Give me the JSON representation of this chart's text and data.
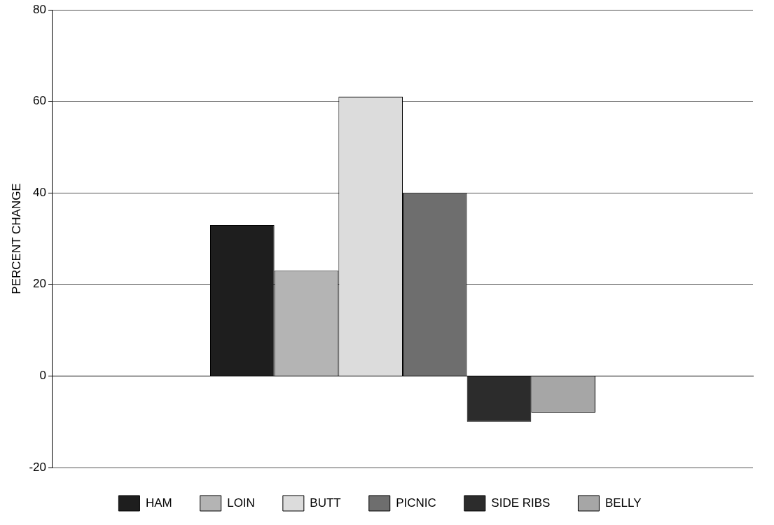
{
  "chart_data": {
    "type": "bar",
    "ylabel": "PERCENT CHANGE",
    "categories": [
      null
    ],
    "series": [
      {
        "name": "HAM",
        "color": "#1e1e1e",
        "values": [
          33
        ]
      },
      {
        "name": "LOIN",
        "color": "#b4b4b4",
        "values": [
          23
        ]
      },
      {
        "name": "BUTT",
        "color": "#dcdcdc",
        "values": [
          61
        ]
      },
      {
        "name": "PICNIC",
        "color": "#6e6e6e",
        "values": [
          40
        ]
      },
      {
        "name": "SIDE RIBS",
        "color": "#2c2c2c",
        "values": [
          -10
        ]
      },
      {
        "name": "BELLY",
        "color": "#a6a6a6",
        "values": [
          -8
        ]
      }
    ],
    "ylim": [
      -20,
      80
    ],
    "yticks": [
      -20,
      0,
      20,
      40,
      60,
      80
    ],
    "grid": "y",
    "legend": "bottom"
  }
}
